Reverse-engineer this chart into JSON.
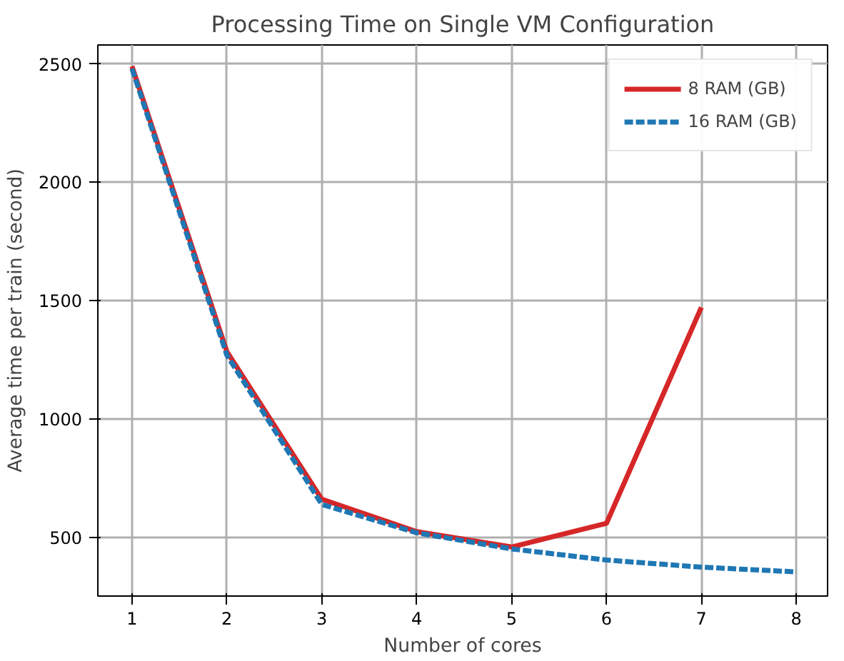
{
  "chart_data": {
    "type": "line",
    "title": "Processing Time on Single VM Configuration",
    "xlabel": "Number of cores",
    "ylabel": "Average time per train (second)",
    "xlim": [
      0.64,
      8.33
    ],
    "ylim": [
      253,
      2580
    ],
    "xticks": [
      1,
      2,
      3,
      4,
      5,
      6,
      7,
      8
    ],
    "yticks": [
      500,
      1000,
      1500,
      2000,
      2500
    ],
    "grid": true,
    "legend": "top right",
    "marker": "none",
    "series": [
      {
        "name": "8 RAM (GB)",
        "color": "#d62728",
        "line_style": "solid",
        "x": [
          1,
          2,
          3,
          4,
          5,
          6,
          7
        ],
        "values": [
          2490,
          1285,
          662,
          525,
          460,
          560,
          1472
        ]
      },
      {
        "name": "16 RAM (GB)",
        "color": "#1f77b4",
        "line_style": "dashed",
        "x": [
          1,
          2,
          3,
          4,
          5,
          6,
          7,
          8
        ],
        "values": [
          2480,
          1270,
          640,
          520,
          452,
          405,
          375,
          355
        ]
      }
    ]
  }
}
